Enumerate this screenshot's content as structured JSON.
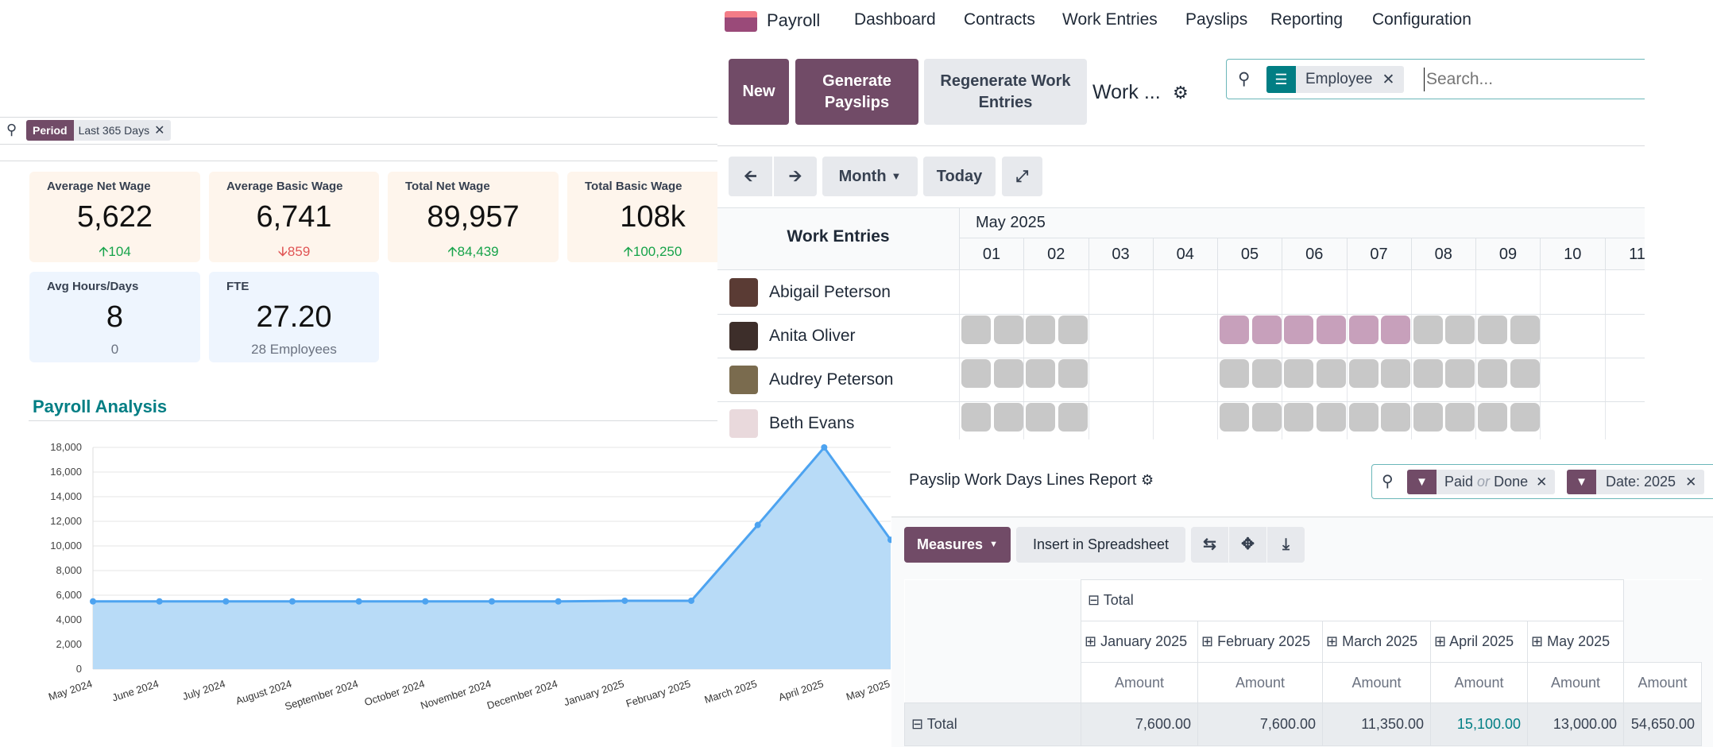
{
  "dashboard": {
    "search": {
      "facet_label": "Period",
      "facet_value": "Last 365 Days"
    },
    "kpis": [
      {
        "title": "Average Net Wage",
        "value": "5,622",
        "delta": "104",
        "trend": "up"
      },
      {
        "title": "Average Basic Wage",
        "value": "6,741",
        "delta": "859",
        "trend": "down"
      },
      {
        "title": "Total Net Wage",
        "value": "89,957",
        "delta": "84,439",
        "trend": "up"
      },
      {
        "title": "Total Basic Wage",
        "value": "108k",
        "delta": "100,250",
        "trend": "up"
      },
      {
        "title": "Avg Hours/Days",
        "value": "8",
        "sub": "0"
      },
      {
        "title": "FTE",
        "value": "27.20",
        "sub": "28 Employees"
      }
    ],
    "section_title": "Payroll Analysis"
  },
  "chart_data": {
    "type": "area",
    "categories": [
      "May 2024",
      "June 2024",
      "July 2024",
      "August 2024",
      "September 2024",
      "October 2024",
      "November 2024",
      "December 2024",
      "January 2025",
      "February 2025",
      "March 2025",
      "April 2025",
      "May 2025"
    ],
    "values": [
      5500,
      5500,
      5500,
      5500,
      5500,
      5500,
      5500,
      5500,
      5550,
      5550,
      11700,
      18000,
      10500
    ],
    "ylim": [
      0,
      18000
    ],
    "yticks": [
      "0",
      "2,000",
      "4,000",
      "6,000",
      "8,000",
      "10,000",
      "12,000",
      "14,000",
      "16,000",
      "18,000"
    ],
    "grid": true,
    "color": "#4da3f0",
    "fill": "#b8dbf7"
  },
  "app": {
    "name": "Payroll",
    "menu": [
      "Dashboard",
      "Contracts",
      "Work Entries",
      "Payslips",
      "Reporting",
      "Configuration"
    ],
    "buttons": {
      "new": "New",
      "generate": "Generate Payslips",
      "regenerate": "Regenerate Work Entries"
    },
    "breadcrumb": "Work ...",
    "search": {
      "facet_value": "Employee",
      "placeholder": "Search..."
    },
    "toolbar": {
      "scale": "Month",
      "today": "Today"
    },
    "gantt": {
      "header": "Work Entries",
      "month": "May 2025",
      "days": [
        "01",
        "02",
        "03",
        "04",
        "05",
        "06",
        "07",
        "08",
        "09",
        "10",
        "11"
      ],
      "rows": [
        {
          "name": "Abigail Peterson",
          "entries": []
        },
        {
          "name": "Anita Oliver",
          "entries": [
            [
              "01",
              "normal"
            ],
            [
              "02",
              "normal"
            ],
            [
              "05",
              "leave"
            ],
            [
              "06",
              "leave"
            ],
            [
              "07",
              "leave"
            ],
            [
              "08",
              "normal"
            ],
            [
              "09",
              "normal"
            ]
          ]
        },
        {
          "name": "Audrey Peterson",
          "entries": [
            [
              "01",
              "normal"
            ],
            [
              "02",
              "normal"
            ],
            [
              "05",
              "normal"
            ],
            [
              "06",
              "normal"
            ],
            [
              "07",
              "normal"
            ],
            [
              "08",
              "normal"
            ],
            [
              "09",
              "normal"
            ]
          ]
        },
        {
          "name": "Beth Evans",
          "entries": [
            [
              "01",
              "normal"
            ],
            [
              "02",
              "normal"
            ],
            [
              "05",
              "normal"
            ],
            [
              "06",
              "normal"
            ],
            [
              "07",
              "normal"
            ],
            [
              "08",
              "normal"
            ],
            [
              "09",
              "normal"
            ]
          ]
        }
      ],
      "colors": {
        "normal": "#c8c8c8",
        "leave": "#c7a0bb"
      }
    }
  },
  "report": {
    "title": "Payslip Work Days Lines Report",
    "filters": [
      {
        "a": "Paid",
        "or": "or",
        "b": "Done"
      },
      {
        "a": "Date: 2025"
      }
    ],
    "measures": "Measures",
    "insert": "Insert in Spreadsheet",
    "pivot": {
      "col_total": "Total",
      "months": [
        "January 2025",
        "February 2025",
        "March 2025",
        "April 2025",
        "May 2025"
      ],
      "measure": "Amount",
      "row_total": "Total",
      "values": [
        "7,600.00",
        "7,600.00",
        "11,350.00",
        "15,100.00",
        "13,000.00",
        "54,650.00"
      ]
    }
  }
}
